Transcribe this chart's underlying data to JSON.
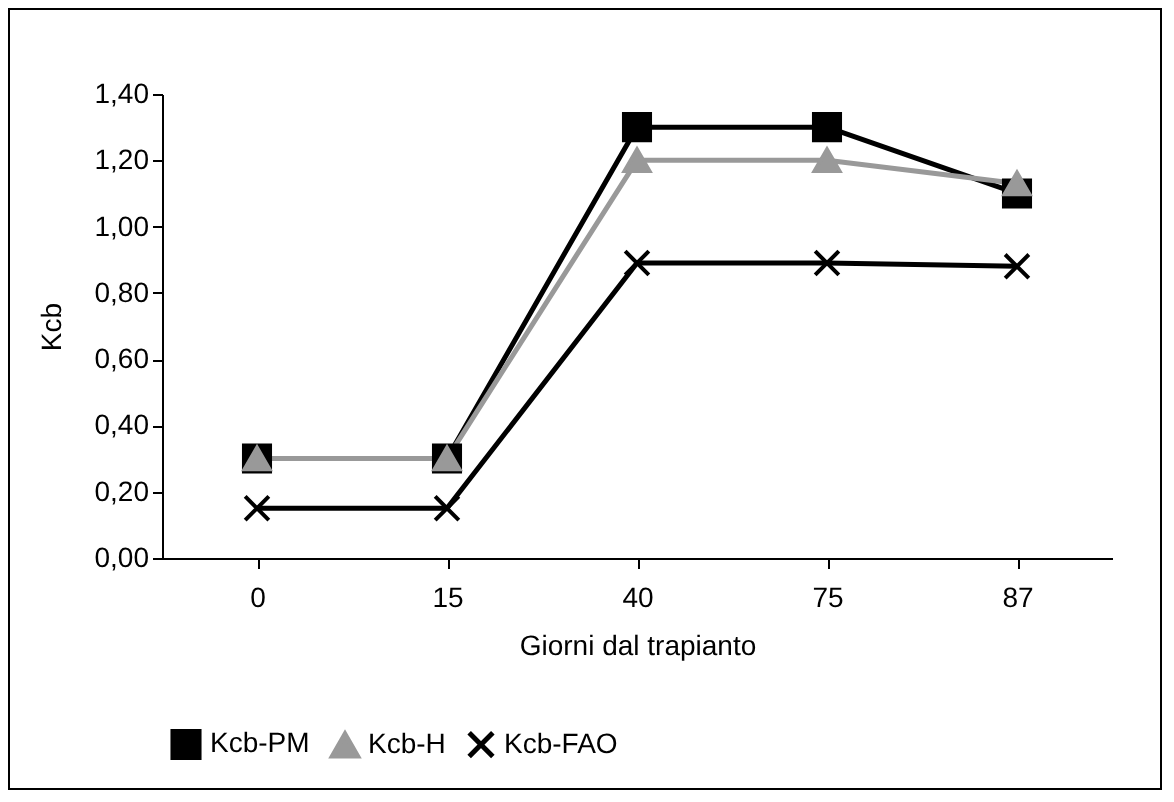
{
  "chart_data": {
    "type": "line",
    "xlabel": "Giorni dal trapianto",
    "ylabel": "Kcb",
    "categories": [
      "0",
      "15",
      "40",
      "75",
      "87"
    ],
    "series": [
      {
        "name": "Kcb-PM",
        "color": "#000000",
        "marker": "square",
        "values": [
          0.3,
          0.3,
          1.3,
          1.3,
          1.1
        ]
      },
      {
        "name": "Kcb-H",
        "color": "#999999",
        "marker": "triangle",
        "values": [
          0.3,
          0.3,
          1.2,
          1.2,
          1.13
        ]
      },
      {
        "name": "Kcb-FAO",
        "color": "#000000",
        "marker": "cross",
        "values": [
          0.15,
          0.15,
          0.89,
          0.89,
          0.88
        ]
      }
    ],
    "ylim": [
      0,
      1.4
    ],
    "yticks": [
      {
        "value": 0,
        "label": "0,00"
      },
      {
        "value": 0.2,
        "label": "0,20"
      },
      {
        "value": 0.4,
        "label": "0,40"
      },
      {
        "value": 0.6,
        "label": "0,60"
      },
      {
        "value": 0.8,
        "label": "0,80"
      },
      {
        "value": 1,
        "label": "1,00"
      },
      {
        "value": 1.2,
        "label": "1,20"
      },
      {
        "value": 1.4,
        "label": "1,40"
      }
    ],
    "grid": false,
    "legend": "bottom"
  }
}
